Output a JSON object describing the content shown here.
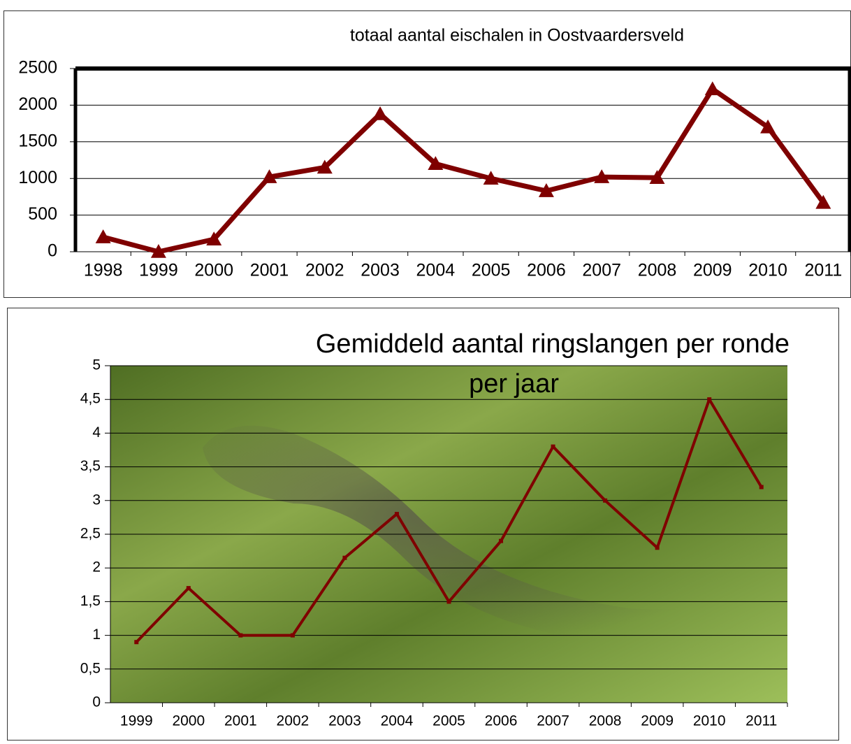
{
  "chart_data": [
    {
      "type": "line",
      "title": "totaal aantal eischalen in Oostvaardersveld",
      "categories": [
        "1998",
        "1999",
        "2000",
        "2001",
        "2002",
        "2003",
        "2004",
        "2005",
        "2006",
        "2007",
        "2008",
        "2009",
        "2010",
        "2011"
      ],
      "series": [
        {
          "color": "#7f0000",
          "marker": "triangle",
          "values": [
            200,
            0,
            170,
            1020,
            1150,
            1880,
            1200,
            1000,
            830,
            1020,
            1010,
            2220,
            1700,
            670
          ]
        }
      ],
      "ylim": [
        0,
        2500
      ],
      "yticks": [
        0,
        500,
        1000,
        1500,
        2000,
        2500
      ],
      "grid": true
    },
    {
      "type": "line",
      "title": [
        "Gemiddeld aantal ringslangen per ronde",
        "per jaar"
      ],
      "categories": [
        "1999",
        "2000",
        "2001",
        "2002",
        "2003",
        "2004",
        "2005",
        "2006",
        "2007",
        "2008",
        "2009",
        "2010",
        "2011"
      ],
      "series": [
        {
          "color": "#7f0000",
          "marker": "square",
          "values": [
            0.9,
            1.7,
            1.0,
            1.0,
            2.15,
            2.8,
            1.5,
            2.4,
            3.8,
            3.0,
            2.3,
            4.5,
            3.2
          ]
        }
      ],
      "ylim": [
        0,
        5
      ],
      "yticks": [
        0,
        {
          "value": 0.5,
          "label": "0,5"
        },
        1,
        {
          "value": 1.5,
          "label": "1,5"
        },
        2,
        {
          "value": 2.5,
          "label": "2,5"
        },
        3,
        {
          "value": 3.5,
          "label": "3,5"
        },
        4,
        {
          "value": 4.5,
          "label": "4,5"
        },
        5
      ],
      "grid": true
    }
  ]
}
